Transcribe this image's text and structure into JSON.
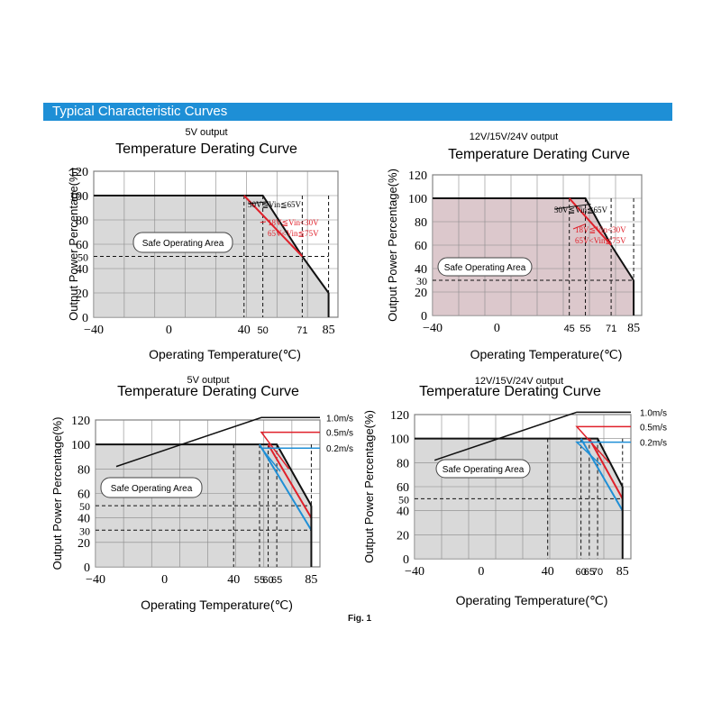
{
  "header": {
    "title": "Typical Characteristic Curves"
  },
  "footer": {
    "fig_label": "Fig. 1"
  },
  "colors": {
    "header_bg": "#1e8fd6",
    "soa_fill": "#d9d9d9",
    "soa_fill_alt": "#dcc8cc",
    "black": "#111111",
    "red": "#e0202a",
    "blue": "#1f8fd6"
  },
  "chart_data": [
    {
      "type": "line",
      "output_label": "5V output",
      "title": "Temperature Derating Curve",
      "xlabel": "Operating Temperature(℃)",
      "ylabel": "Output Power Percentage(%)",
      "x_ticks": [
        "−40",
        "0",
        "40",
        "50",
        "71",
        "85"
      ],
      "y_ticks": [
        "120",
        "100",
        "80",
        "60",
        "50",
        "40",
        "20",
        "0"
      ],
      "xlim": [
        -40,
        90
      ],
      "ylim": [
        0,
        120
      ],
      "soa_label": "Safe Operating Area",
      "series": [
        {
          "name": "30V≦Vin≦65V",
          "color": "black",
          "x": [
            -40,
            50,
            71,
            85
          ],
          "y": [
            100,
            100,
            50,
            20
          ]
        },
        {
          "name": "18V≦Vin<30V / 65V<Vin≦75V",
          "color": "red",
          "x": [
            40,
            71
          ],
          "y": [
            100,
            50
          ]
        }
      ]
    },
    {
      "type": "line",
      "output_label": "12V/15V/24V output",
      "title": "Temperature Derating Curve",
      "xlabel": "Operating Temperature(℃)",
      "ylabel": "Output Power Percentage(%)",
      "x_ticks": [
        "−40",
        "0",
        "45",
        "55",
        "71",
        "85"
      ],
      "y_ticks": [
        "120",
        "100",
        "80",
        "60",
        "40",
        "30",
        "20",
        "0"
      ],
      "xlim": [
        -40,
        90
      ],
      "ylim": [
        0,
        120
      ],
      "soa_label": "Safe Operating Area",
      "series": [
        {
          "name": "30V≦Vin≦65V",
          "color": "black",
          "x": [
            -40,
            55,
            71,
            85
          ],
          "y": [
            100,
            100,
            60,
            30
          ]
        },
        {
          "name": "18V≦Vin<30V / 65V<Vin≦75V",
          "color": "red",
          "x": [
            45,
            71
          ],
          "y": [
            100,
            60
          ]
        }
      ]
    },
    {
      "type": "line",
      "output_label": "5V output",
      "title": "Temperature Derating Curve",
      "xlabel": "Operating Temperature(℃)",
      "ylabel": "Output Power Percentage(%)",
      "x_ticks": [
        "−40",
        "0",
        "40",
        "55",
        "60",
        "65",
        "85"
      ],
      "y_ticks": [
        "120",
        "100",
        "80",
        "60",
        "50",
        "40",
        "30",
        "20",
        "0"
      ],
      "xlim": [
        -40,
        90
      ],
      "ylim": [
        0,
        120
      ],
      "soa_label": "Safe Operating Area",
      "series": [
        {
          "name": "1.0m/s",
          "color": "black",
          "x": [
            -40,
            65,
            85
          ],
          "y": [
            100,
            100,
            50
          ]
        },
        {
          "name": "0.5m/s",
          "color": "red",
          "x": [
            60,
            85
          ],
          "y": [
            100,
            40
          ]
        },
        {
          "name": "0.2m/s",
          "color": "blue",
          "x": [
            55,
            85
          ],
          "y": [
            100,
            30
          ]
        }
      ]
    },
    {
      "type": "line",
      "output_label": "12V/15V/24V output",
      "title": "Temperature Derating Curve",
      "xlabel": "Operating Temperature(℃)",
      "ylabel": "Output Power Percentage(%)",
      "x_ticks": [
        "−40",
        "0",
        "40",
        "60",
        "65",
        "70",
        "85"
      ],
      "y_ticks": [
        "120",
        "100",
        "80",
        "60",
        "50",
        "40",
        "20",
        "0"
      ],
      "xlim": [
        -40,
        90
      ],
      "ylim": [
        0,
        120
      ],
      "soa_label": "Safe Operating Area",
      "series": [
        {
          "name": "1.0m/s",
          "color": "black",
          "x": [
            -40,
            70,
            85
          ],
          "y": [
            100,
            100,
            60
          ]
        },
        {
          "name": "0.5m/s",
          "color": "red",
          "x": [
            65,
            85
          ],
          "y": [
            100,
            50
          ]
        },
        {
          "name": "0.2m/s",
          "color": "blue",
          "x": [
            60,
            85
          ],
          "y": [
            100,
            40
          ]
        }
      ]
    }
  ]
}
